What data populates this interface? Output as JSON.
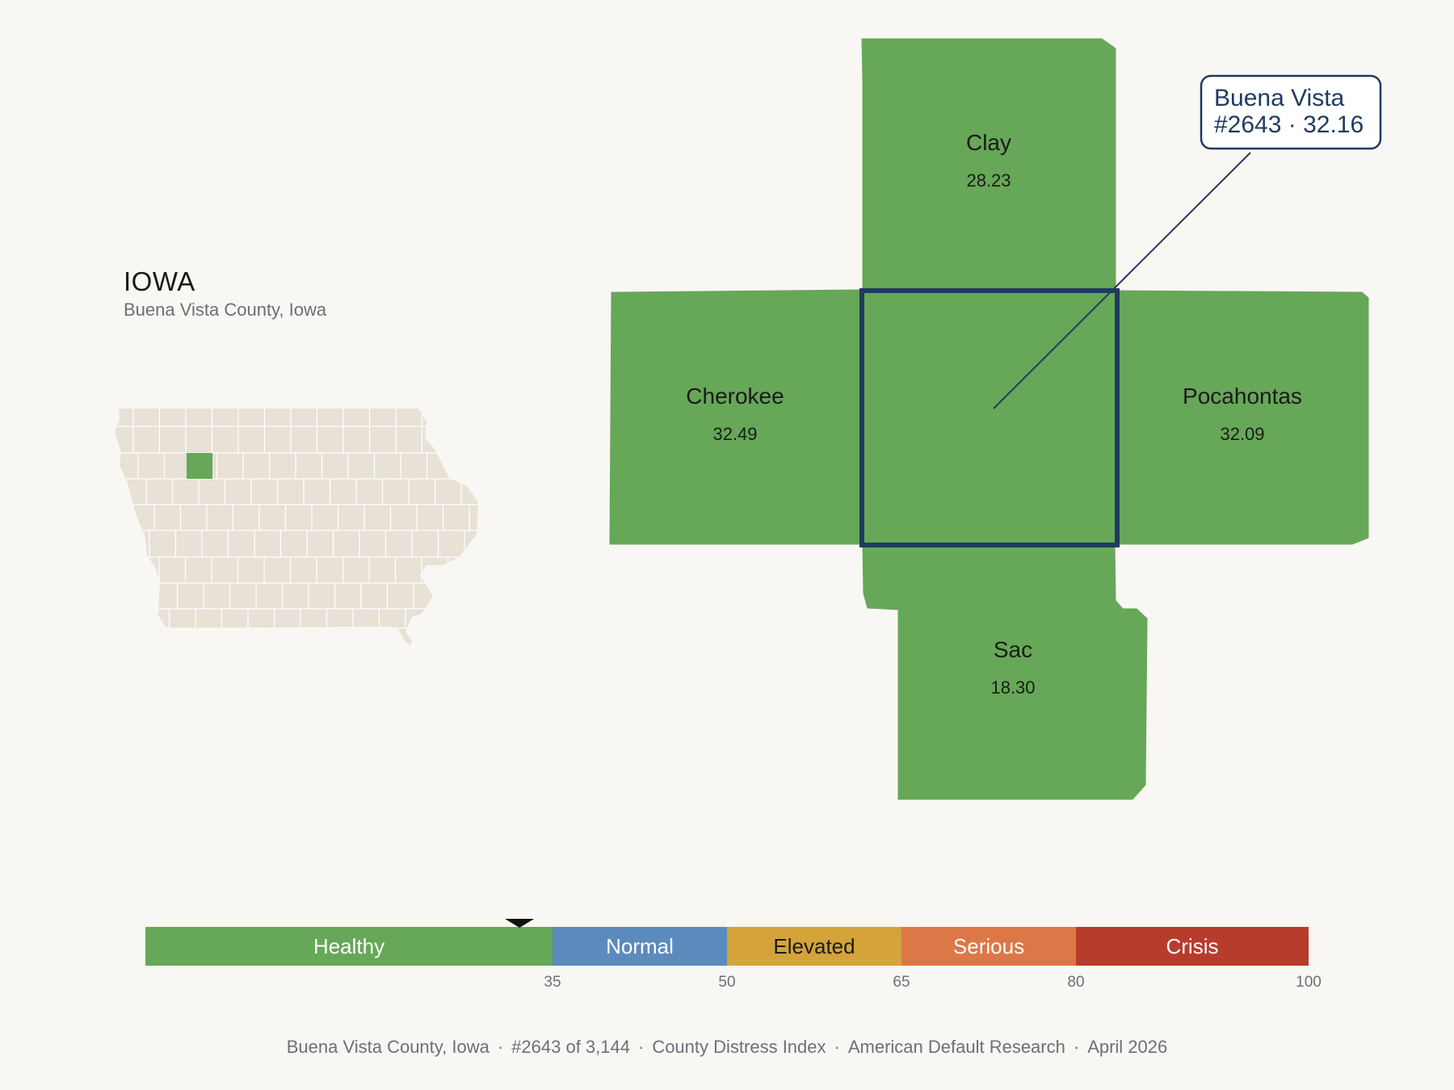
{
  "header": {
    "state": "IOWA",
    "subtitle": "Buena Vista County, Iowa"
  },
  "colors": {
    "background": "#f9f7f3",
    "locator_fill": "#e7e1d6",
    "locator_stroke": "#ffffff",
    "highlight_fill": "#66a758",
    "navy": "#1f3a5f"
  },
  "counties": [
    {
      "name": "Clay",
      "value": "28.23"
    },
    {
      "name": "Cherokee",
      "value": "32.49"
    },
    {
      "name": "Pocahontas",
      "value": "32.09"
    },
    {
      "name": "Sac",
      "value": "18.30"
    },
    {
      "name": "Buena Vista",
      "value": "32.16"
    }
  ],
  "callout": {
    "line1": "Buena Vista",
    "line2": "#2643 · 32.16",
    "value": 32.16
  },
  "scale": {
    "max": 100,
    "marker_value": 32.16,
    "segments": [
      {
        "label": "Healthy",
        "from": 0,
        "to": 35,
        "color": "#66a758",
        "text_color": "#ffffff"
      },
      {
        "label": "Normal",
        "from": 35,
        "to": 50,
        "color": "#5b8bbd",
        "text_color": "#ffffff"
      },
      {
        "label": "Elevated",
        "from": 50,
        "to": 65,
        "color": "#d4a43b",
        "text_color": "#1a1a1a"
      },
      {
        "label": "Serious",
        "from": 65,
        "to": 80,
        "color": "#dc7748",
        "text_color": "#ffffff"
      },
      {
        "label": "Crisis",
        "from": 80,
        "to": 100,
        "color": "#b83c2c",
        "text_color": "#ffffff"
      }
    ],
    "ticks": [
      "35",
      "50",
      "65",
      "80",
      "100"
    ]
  },
  "footer": {
    "county": "Buena Vista County, Iowa",
    "rank": "#2643 of 3,144",
    "index": "County Distress Index",
    "source": "American Default Research",
    "date": "April 2026"
  }
}
